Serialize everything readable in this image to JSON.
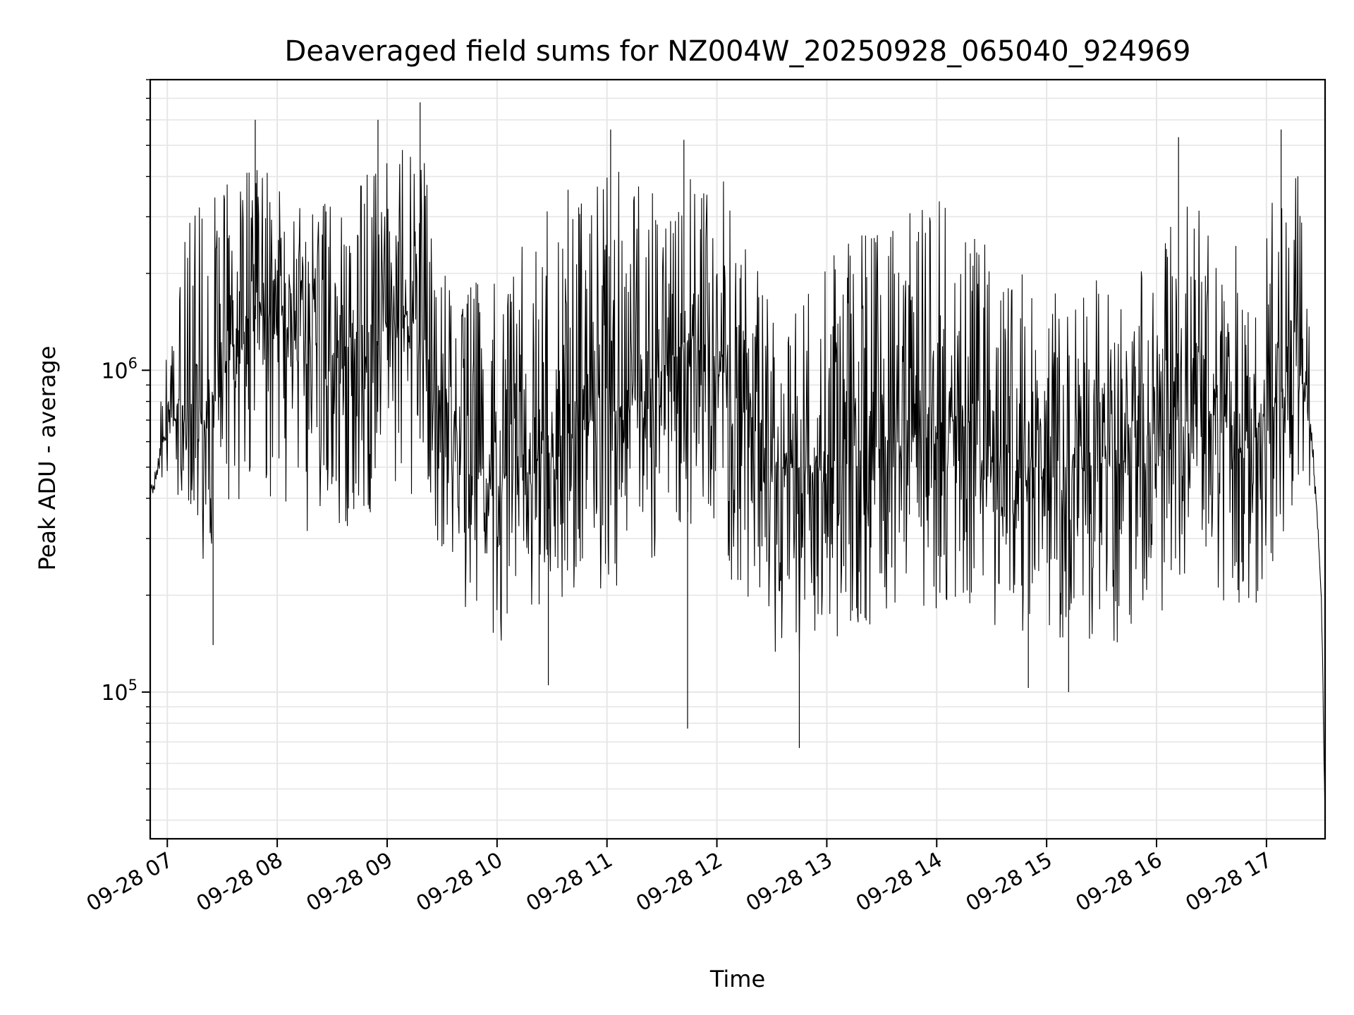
{
  "chart_data": {
    "type": "line",
    "title": "Deaveraged field sums for NZ004W_20250928_065040_924969",
    "xlabel": "Time",
    "ylabel": "Peak ADU - average",
    "y_scale": "log",
    "ylim": [
      35000,
      8000000
    ],
    "xlim": [
      "2025-09-28 06:50:40",
      "2025-09-28 17:32:00"
    ],
    "grid": true,
    "line_color": "#000000",
    "x_ticks": [
      {
        "label": "09-28 07",
        "value": "2025-09-28 07:00"
      },
      {
        "label": "09-28 08",
        "value": "2025-09-28 08:00"
      },
      {
        "label": "09-28 09",
        "value": "2025-09-28 09:00"
      },
      {
        "label": "09-28 10",
        "value": "2025-09-28 10:00"
      },
      {
        "label": "09-28 11",
        "value": "2025-09-28 11:00"
      },
      {
        "label": "09-28 12",
        "value": "2025-09-28 12:00"
      },
      {
        "label": "09-28 13",
        "value": "2025-09-28 13:00"
      },
      {
        "label": "09-28 14",
        "value": "2025-09-28 14:00"
      },
      {
        "label": "09-28 15",
        "value": "2025-09-28 15:00"
      },
      {
        "label": "09-28 16",
        "value": "2025-09-28 16:00"
      },
      {
        "label": "09-28 17",
        "value": "2025-09-28 17:00"
      }
    ],
    "y_ticks": [
      {
        "base": "10",
        "exp": "5",
        "value": 100000
      },
      {
        "base": "10",
        "exp": "6",
        "value": 1000000
      }
    ],
    "series": [
      {
        "x": [
          "2025-09-28 06:50:40",
          "2025-09-28 06:55",
          "2025-09-28 07:00",
          "2025-09-28 07:10",
          "2025-09-28 07:20",
          "2025-09-28 07:30",
          "2025-09-28 07:40",
          "2025-09-28 07:50",
          "2025-09-28 08:00",
          "2025-09-28 08:10",
          "2025-09-28 08:20",
          "2025-09-28 08:30",
          "2025-09-28 08:40",
          "2025-09-28 08:50",
          "2025-09-28 09:00",
          "2025-09-28 09:10",
          "2025-09-28 09:20",
          "2025-09-28 09:30",
          "2025-09-28 09:40",
          "2025-09-28 09:50",
          "2025-09-28 10:00",
          "2025-09-28 10:10",
          "2025-09-28 10:20",
          "2025-09-28 10:30",
          "2025-09-28 10:40",
          "2025-09-28 10:50",
          "2025-09-28 11:00",
          "2025-09-28 11:10",
          "2025-09-28 11:20",
          "2025-09-28 11:30",
          "2025-09-28 11:40",
          "2025-09-28 11:50",
          "2025-09-28 12:00",
          "2025-09-28 12:10",
          "2025-09-28 12:20",
          "2025-09-28 12:30",
          "2025-09-28 12:40",
          "2025-09-28 12:50",
          "2025-09-28 13:00",
          "2025-09-28 13:10",
          "2025-09-28 13:20",
          "2025-09-28 13:30",
          "2025-09-28 13:40",
          "2025-09-28 13:50",
          "2025-09-28 14:00",
          "2025-09-28 14:10",
          "2025-09-28 14:20",
          "2025-09-28 14:30",
          "2025-09-28 14:40",
          "2025-09-28 14:50",
          "2025-09-28 15:00",
          "2025-09-28 15:10",
          "2025-09-28 15:20",
          "2025-09-28 15:30",
          "2025-09-28 15:40",
          "2025-09-28 15:50",
          "2025-09-28 16:00",
          "2025-09-28 16:10",
          "2025-09-28 16:20",
          "2025-09-28 16:30",
          "2025-09-28 16:40",
          "2025-09-28 16:50",
          "2025-09-28 17:00",
          "2025-09-28 17:10",
          "2025-09-28 17:20",
          "2025-09-28 17:25",
          "2025-09-28 17:30",
          "2025-09-28 17:32"
        ],
        "median": [
          400000,
          500000,
          700000,
          800000,
          700000,
          1000000,
          1300000,
          1500000,
          1400000,
          1300000,
          1200000,
          1100000,
          1000000,
          1100000,
          1300000,
          1500000,
          1300000,
          800000,
          500000,
          450000,
          450000,
          500000,
          550000,
          550000,
          600000,
          700000,
          700000,
          800000,
          900000,
          1000000,
          1200000,
          1300000,
          1200000,
          900000,
          700000,
          500000,
          500000,
          500000,
          500000,
          500000,
          550000,
          550000,
          600000,
          650000,
          650000,
          700000,
          650000,
          600000,
          550000,
          500000,
          500000,
          500000,
          500000,
          550000,
          500000,
          500000,
          550000,
          700000,
          800000,
          750000,
          650000,
          650000,
          700000,
          900000,
          900000,
          600000,
          200000,
          40000
        ],
        "upper": [
          420000,
          800000,
          1200000,
          2800000,
          3500000,
          4500000,
          5000000,
          4500000,
          4000000,
          3800000,
          3500000,
          3200000,
          3000000,
          4500000,
          4500000,
          5000000,
          4500000,
          2500000,
          1800000,
          2000000,
          2200000,
          2500000,
          3000000,
          3500000,
          3800000,
          3800000,
          4000000,
          4500000,
          4000000,
          4000000,
          4500000,
          4500000,
          4200000,
          3500000,
          2500000,
          1500000,
          1400000,
          1800000,
          2200000,
          2500000,
          2800000,
          2800000,
          3000000,
          3200000,
          3500000,
          3500000,
          3000000,
          2500000,
          2200000,
          2000000,
          2000000,
          1800000,
          1800000,
          2000000,
          1800000,
          2000000,
          2200000,
          3000000,
          3800000,
          3500000,
          2800000,
          2500000,
          3000000,
          4500000,
          4000000,
          2500000,
          300000,
          45000
        ],
        "lower": [
          380000,
          400000,
          450000,
          350000,
          250000,
          350000,
          400000,
          400000,
          380000,
          300000,
          280000,
          250000,
          280000,
          350000,
          400000,
          420000,
          350000,
          250000,
          180000,
          150000,
          140000,
          160000,
          170000,
          180000,
          180000,
          200000,
          200000,
          220000,
          250000,
          250000,
          300000,
          320000,
          300000,
          200000,
          150000,
          120000,
          120000,
          140000,
          140000,
          150000,
          160000,
          160000,
          170000,
          180000,
          180000,
          180000,
          170000,
          160000,
          150000,
          140000,
          140000,
          140000,
          140000,
          150000,
          140000,
          150000,
          160000,
          200000,
          250000,
          220000,
          180000,
          180000,
          200000,
          300000,
          300000,
          200000,
          150000,
          40000
        ],
        "spikes_high": [
          {
            "x": "2025-09-28 09:18",
            "y": 6800000
          },
          {
            "x": "2025-09-28 08:55",
            "y": 6000000
          },
          {
            "x": "2025-09-28 07:48",
            "y": 6000000
          },
          {
            "x": "2025-09-28 16:12",
            "y": 5300000
          },
          {
            "x": "2025-09-28 17:08",
            "y": 5600000
          },
          {
            "x": "2025-09-28 11:42",
            "y": 5200000
          },
          {
            "x": "2025-09-28 11:02",
            "y": 5600000
          }
        ],
        "spikes_low": [
          {
            "x": "2025-09-28 11:44",
            "y": 77000
          },
          {
            "x": "2025-09-28 12:45",
            "y": 67000
          },
          {
            "x": "2025-09-28 07:25",
            "y": 140000
          },
          {
            "x": "2025-09-28 10:28",
            "y": 105000
          },
          {
            "x": "2025-09-28 14:50",
            "y": 103000
          },
          {
            "x": "2025-09-28 15:12",
            "y": 100000
          }
        ]
      }
    ]
  }
}
